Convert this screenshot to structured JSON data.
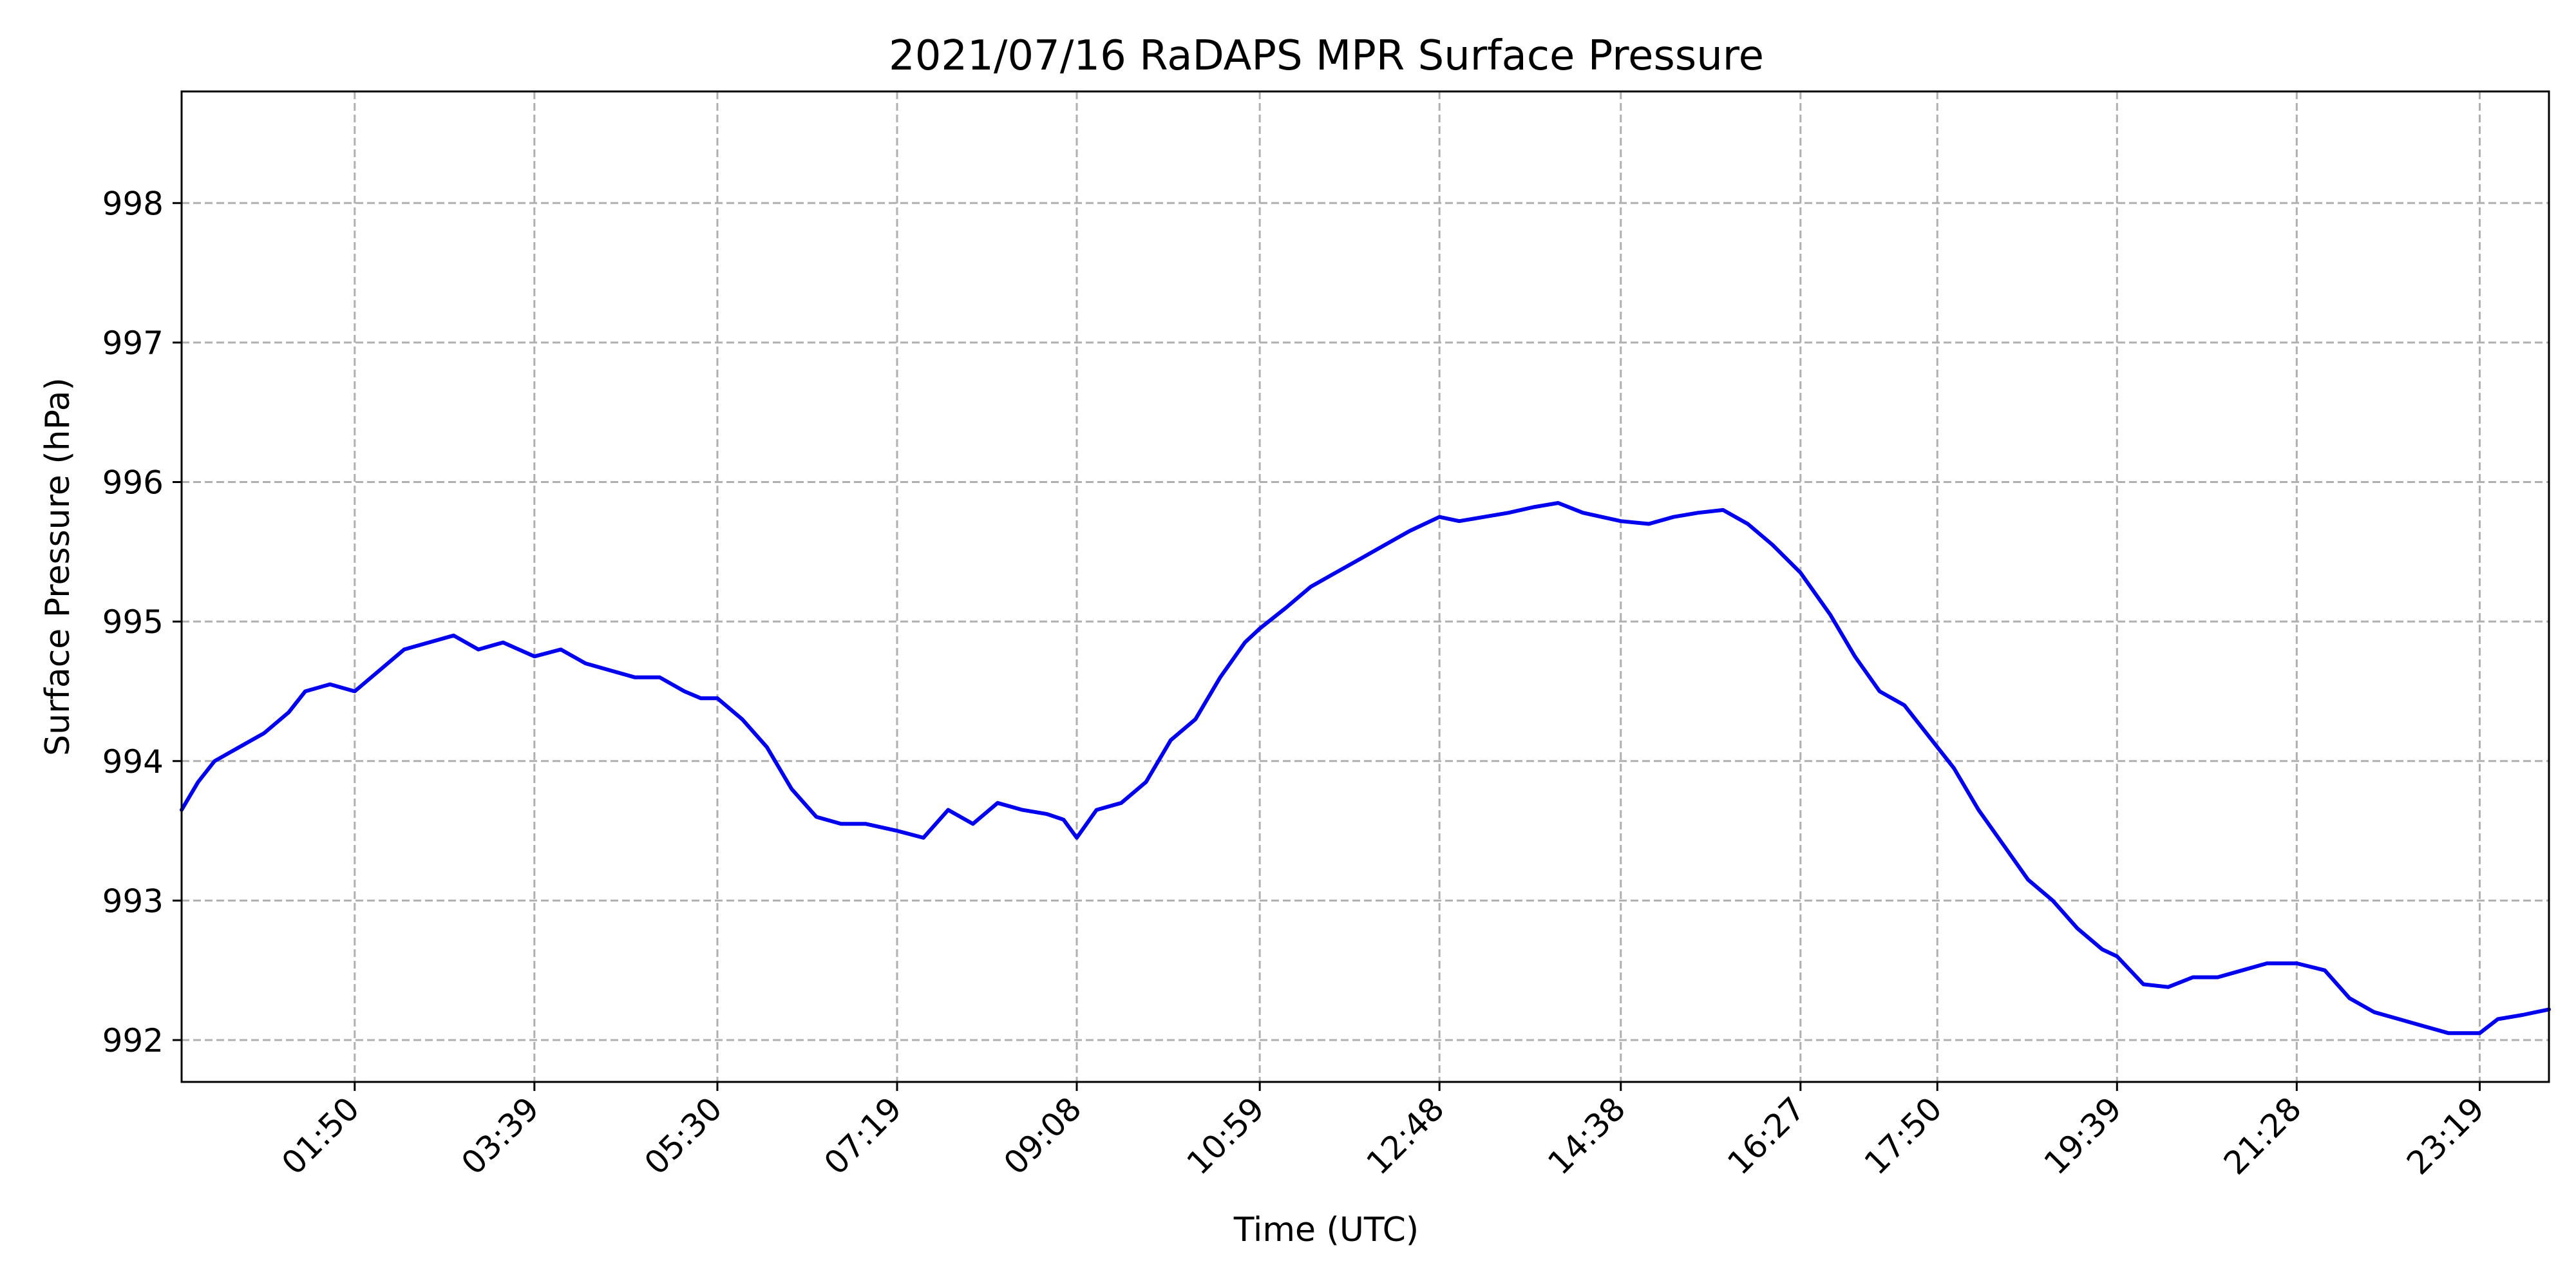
{
  "chart_data": {
    "type": "line",
    "title": "2021/07/16 RaDAPS MPR Surface Pressure",
    "xlabel": "Time (UTC)",
    "ylabel": "Surface Pressure (hPa)",
    "xlim": [
      "00:05",
      "24:01"
    ],
    "ylim": [
      991.7,
      998.8
    ],
    "xticks": [
      "01:50",
      "03:39",
      "05:30",
      "07:19",
      "09:08",
      "10:59",
      "12:48",
      "14:38",
      "16:27",
      "17:50",
      "19:39",
      "21:28",
      "23:19"
    ],
    "yticks": [
      992,
      993,
      994,
      995,
      996,
      997,
      998
    ],
    "grid": true,
    "grid_style": "dashed",
    "line_color": "#0000ee",
    "series": [
      {
        "x": [
          "00:05",
          "00:15",
          "00:25",
          "00:40",
          "00:55",
          "01:10",
          "01:20",
          "01:35",
          "01:50",
          "02:05",
          "02:20",
          "02:35",
          "02:50",
          "03:05",
          "03:20",
          "03:39",
          "03:55",
          "04:10",
          "04:25",
          "04:40",
          "04:55",
          "05:10",
          "05:20",
          "05:30",
          "05:45",
          "06:00",
          "06:15",
          "06:30",
          "06:45",
          "07:00",
          "07:19",
          "07:35",
          "07:50",
          "08:05",
          "08:20",
          "08:35",
          "08:50",
          "09:00",
          "09:08",
          "09:20",
          "09:35",
          "09:50",
          "10:05",
          "10:20",
          "10:35",
          "10:50",
          "10:59",
          "11:15",
          "11:30",
          "11:45",
          "12:00",
          "12:15",
          "12:30",
          "12:48",
          "13:00",
          "13:15",
          "13:30",
          "13:45",
          "14:00",
          "14:15",
          "14:38",
          "14:55",
          "15:10",
          "15:25",
          "15:40",
          "15:55",
          "16:10",
          "16:27",
          "16:45",
          "17:00",
          "17:15",
          "17:30",
          "17:40",
          "17:50",
          "18:00",
          "18:15",
          "18:30",
          "18:45",
          "19:00",
          "19:15",
          "19:30",
          "19:39",
          "19:55",
          "20:10",
          "20:25",
          "20:40",
          "20:55",
          "21:10",
          "21:28",
          "21:45",
          "22:00",
          "22:15",
          "22:30",
          "22:45",
          "23:00",
          "23:19",
          "23:30",
          "23:45",
          "24:01"
        ],
        "y": [
          993.65,
          993.85,
          994.0,
          994.1,
          994.2,
          994.35,
          994.5,
          994.55,
          994.5,
          994.65,
          994.8,
          994.85,
          994.9,
          994.8,
          994.85,
          994.75,
          994.8,
          994.7,
          994.65,
          994.6,
          994.6,
          994.5,
          994.45,
          994.45,
          994.3,
          994.1,
          993.8,
          993.6,
          993.55,
          993.55,
          993.5,
          993.45,
          993.65,
          993.55,
          993.7,
          993.65,
          993.62,
          993.58,
          993.45,
          993.65,
          993.7,
          993.85,
          994.15,
          994.3,
          994.6,
          994.85,
          994.95,
          995.1,
          995.25,
          995.35,
          995.45,
          995.55,
          995.65,
          995.75,
          995.72,
          995.75,
          995.78,
          995.82,
          995.85,
          995.78,
          995.72,
          995.7,
          995.75,
          995.78,
          995.8,
          995.7,
          995.55,
          995.35,
          995.05,
          994.75,
          994.5,
          994.4,
          994.25,
          994.1,
          993.95,
          993.65,
          993.4,
          993.15,
          993.0,
          992.8,
          992.65,
          992.6,
          992.4,
          992.38,
          992.45,
          992.45,
          992.5,
          992.55,
          992.55,
          992.5,
          992.3,
          992.2,
          992.15,
          992.1,
          992.05,
          992.05,
          992.15,
          992.18,
          992.22
        ]
      }
    ]
  }
}
